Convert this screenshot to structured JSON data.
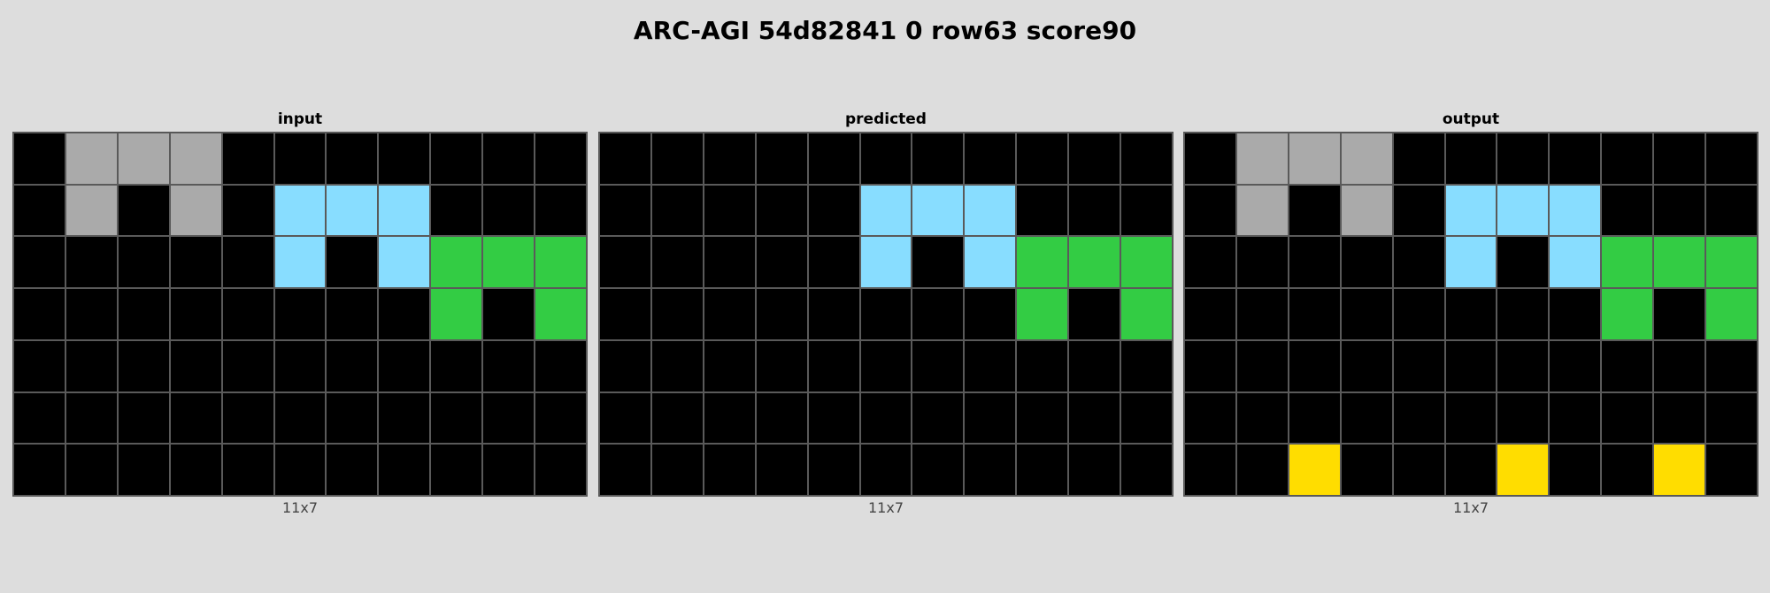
{
  "title": "ARC-AGI 54d82841 0 row63 score90",
  "palette": {
    "0": "#000000",
    "3": "#33cc44",
    "4": "#ffdd00",
    "5": "#aaaaaa",
    "8": "#88ddff"
  },
  "panels": [
    {
      "label": "input",
      "dims": "11x7",
      "grid": [
        [
          0,
          5,
          5,
          5,
          0,
          0,
          0,
          0,
          0,
          0,
          0
        ],
        [
          0,
          5,
          0,
          5,
          0,
          8,
          8,
          8,
          0,
          0,
          0
        ],
        [
          0,
          0,
          0,
          0,
          0,
          8,
          0,
          8,
          3,
          3,
          3
        ],
        [
          0,
          0,
          0,
          0,
          0,
          0,
          0,
          0,
          3,
          0,
          3
        ],
        [
          0,
          0,
          0,
          0,
          0,
          0,
          0,
          0,
          0,
          0,
          0
        ],
        [
          0,
          0,
          0,
          0,
          0,
          0,
          0,
          0,
          0,
          0,
          0
        ],
        [
          0,
          0,
          0,
          0,
          0,
          0,
          0,
          0,
          0,
          0,
          0
        ]
      ]
    },
    {
      "label": "predicted",
      "dims": "11x7",
      "grid": [
        [
          0,
          0,
          0,
          0,
          0,
          0,
          0,
          0,
          0,
          0,
          0
        ],
        [
          0,
          0,
          0,
          0,
          0,
          8,
          8,
          8,
          0,
          0,
          0
        ],
        [
          0,
          0,
          0,
          0,
          0,
          8,
          0,
          8,
          3,
          3,
          3
        ],
        [
          0,
          0,
          0,
          0,
          0,
          0,
          0,
          0,
          3,
          0,
          3
        ],
        [
          0,
          0,
          0,
          0,
          0,
          0,
          0,
          0,
          0,
          0,
          0
        ],
        [
          0,
          0,
          0,
          0,
          0,
          0,
          0,
          0,
          0,
          0,
          0
        ],
        [
          0,
          0,
          0,
          0,
          0,
          0,
          0,
          0,
          0,
          0,
          0
        ]
      ]
    },
    {
      "label": "output",
      "dims": "11x7",
      "grid": [
        [
          0,
          5,
          5,
          5,
          0,
          0,
          0,
          0,
          0,
          0,
          0
        ],
        [
          0,
          5,
          0,
          5,
          0,
          8,
          8,
          8,
          0,
          0,
          0
        ],
        [
          0,
          0,
          0,
          0,
          0,
          8,
          0,
          8,
          3,
          3,
          3
        ],
        [
          0,
          0,
          0,
          0,
          0,
          0,
          0,
          0,
          3,
          0,
          3
        ],
        [
          0,
          0,
          0,
          0,
          0,
          0,
          0,
          0,
          0,
          0,
          0
        ],
        [
          0,
          0,
          0,
          0,
          0,
          0,
          0,
          0,
          0,
          0,
          0
        ],
        [
          0,
          0,
          4,
          0,
          0,
          0,
          4,
          0,
          0,
          4,
          0
        ]
      ]
    }
  ]
}
